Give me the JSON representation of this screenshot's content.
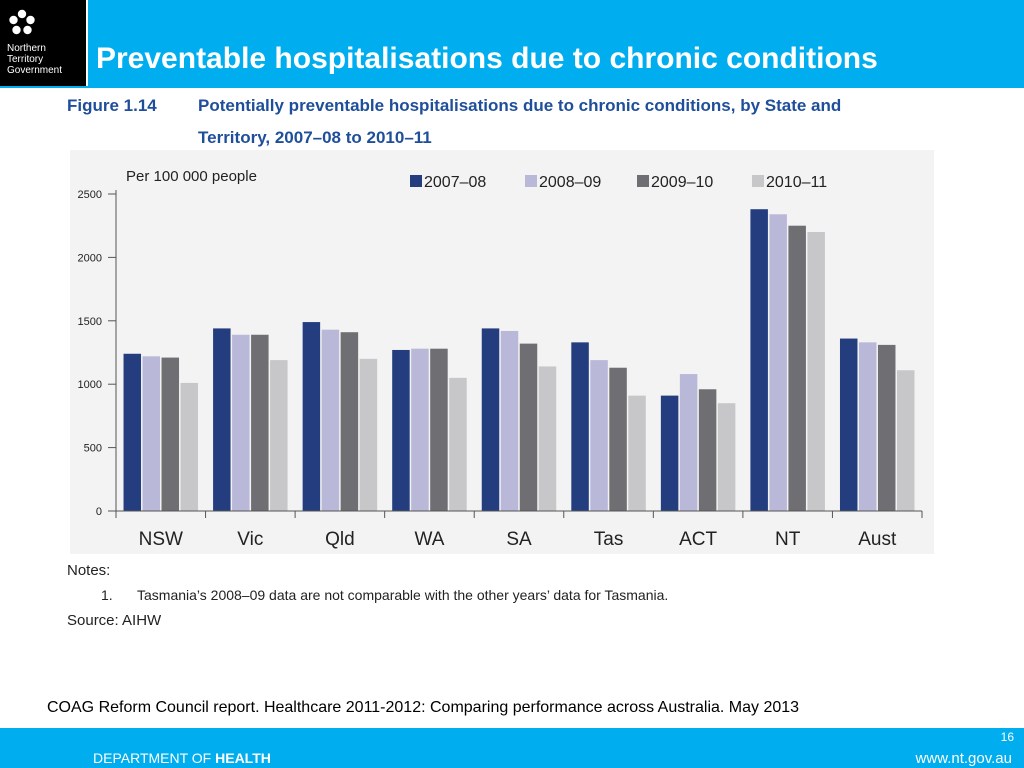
{
  "header": {
    "logo_lines": [
      "Northern",
      "Territory",
      "Government"
    ],
    "slide_title": "Preventable hospitalisations due to chronic conditions",
    "logo_icon": "flower-emblem-icon"
  },
  "figure": {
    "label": "Figure 1.14",
    "title_line1": "Potentially preventable hospitalisations due to chronic conditions, by State and",
    "title_line2": "Territory, 2007–08 to 2010–11"
  },
  "chart_data": {
    "type": "bar",
    "ylabel": "Per 100 000 people",
    "categories": [
      "NSW",
      "Vic",
      "Qld",
      "WA",
      "SA",
      "Tas",
      "ACT",
      "NT",
      "Aust"
    ],
    "ylim": [
      0,
      2500
    ],
    "yticks": [
      0,
      500,
      1000,
      1500,
      2000,
      2500
    ],
    "legend_position": "top-right",
    "grid": false,
    "series": [
      {
        "name": "2007–08",
        "color": "#233d7f",
        "values": [
          1240,
          1440,
          1490,
          1270,
          1440,
          1330,
          910,
          2380,
          1360
        ]
      },
      {
        "name": "2008–09",
        "color": "#b9b8d8",
        "values": [
          1220,
          1390,
          1430,
          1280,
          1420,
          1190,
          1080,
          2340,
          1330
        ]
      },
      {
        "name": "2009–10",
        "color": "#6f6f73",
        "values": [
          1210,
          1390,
          1410,
          1280,
          1320,
          1130,
          960,
          2250,
          1310
        ]
      },
      {
        "name": "2010–11",
        "color": "#c7c7c9",
        "values": [
          1010,
          1190,
          1200,
          1050,
          1140,
          910,
          850,
          2200,
          1110
        ]
      }
    ]
  },
  "notes": {
    "heading": "Notes:",
    "number": "1.",
    "text": "Tasmania’s 2008–09 data are not comparable with the other years’ data for Tasmania.",
    "source": "Source: AIHW"
  },
  "citation": "COAG Reform Council report. Healthcare 2011-2012: Comparing performance across Australia.  May 2013",
  "footer": {
    "page_number": "16",
    "dept_prefix": "DEPARTMENT OF ",
    "dept_bold": "HEALTH",
    "website": "www.nt.gov.au"
  }
}
